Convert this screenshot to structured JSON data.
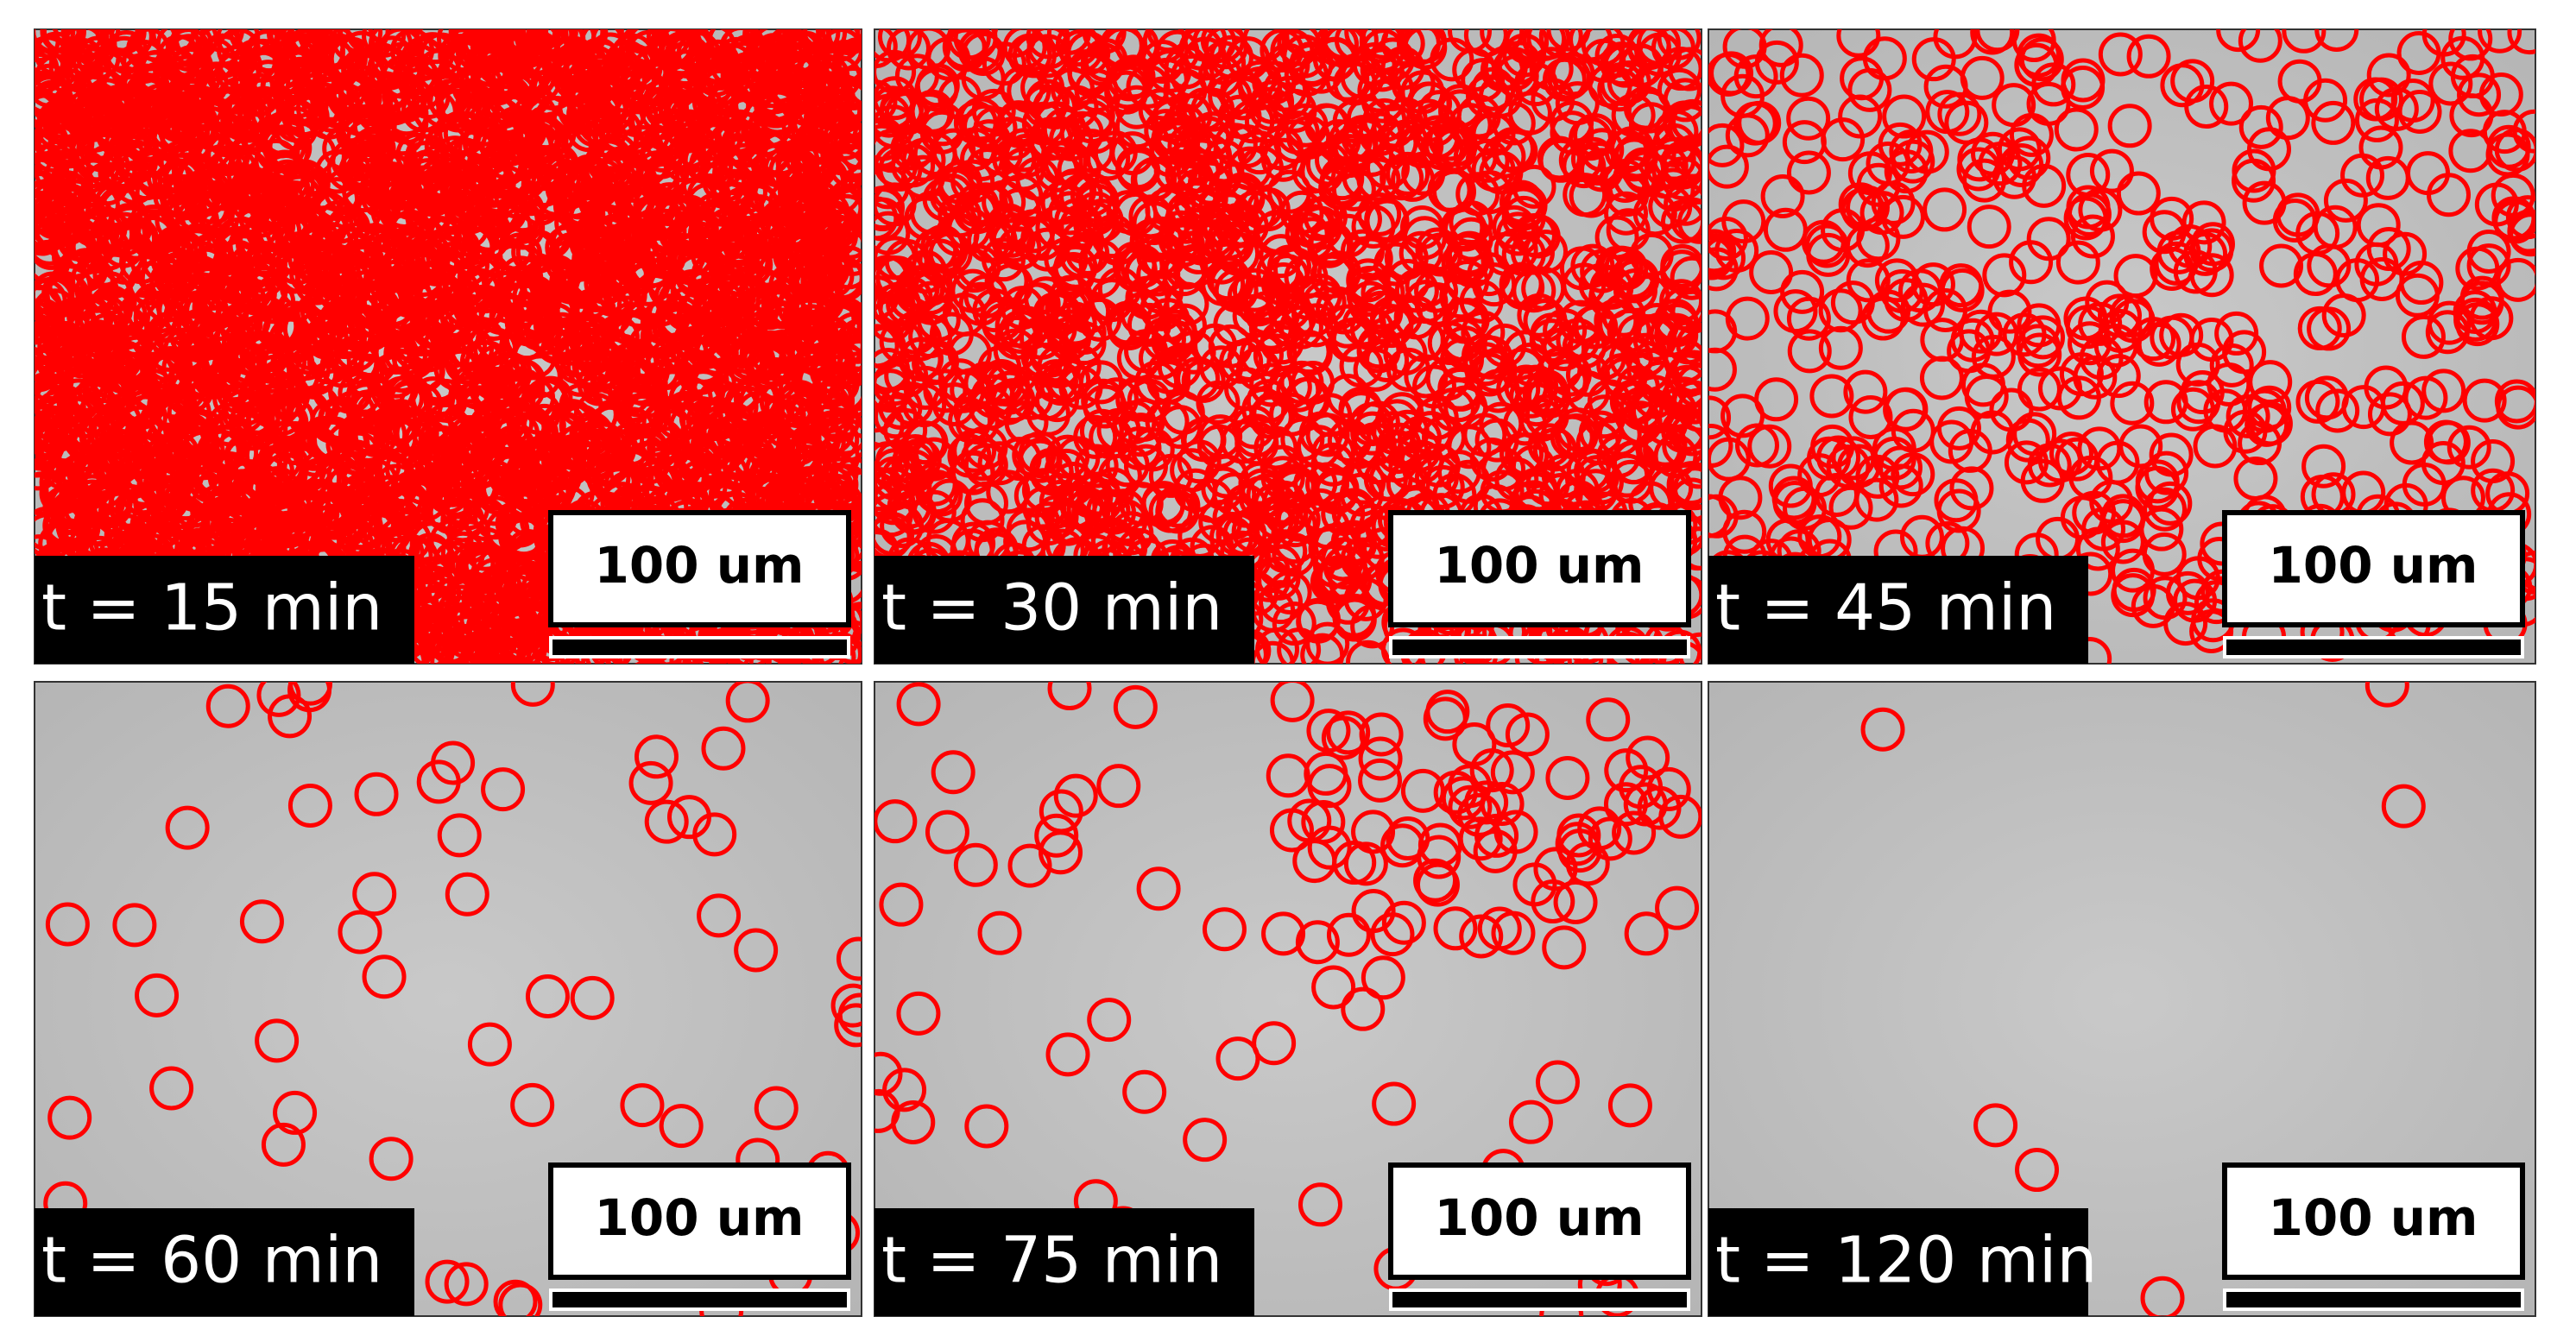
{
  "panels": [
    {
      "time_label": "t = 15 min",
      "scale_label": "100 um"
    },
    {
      "time_label": "t = 30 min",
      "scale_label": "100 um"
    },
    {
      "time_label": "t = 45 min",
      "scale_label": "100 um"
    },
    {
      "time_label": "t = 60 min",
      "scale_label": "100 um"
    },
    {
      "time_label": "t = 75 min",
      "scale_label": "100 um"
    },
    {
      "time_label": "t = 120 min",
      "scale_label": "100 um"
    }
  ]
}
